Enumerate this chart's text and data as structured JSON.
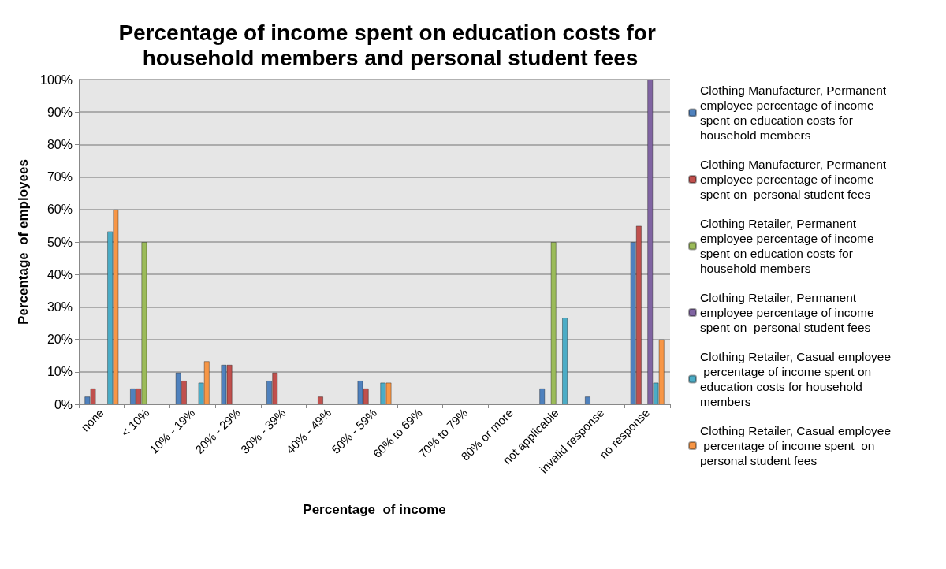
{
  "chart_data": {
    "type": "bar",
    "title": "Percentage of income spent on education costs for household members and personal student fees",
    "xlabel": "Percentage  of income",
    "ylabel": "Percentage  of employees",
    "categories": [
      "none",
      "< 10%",
      "10% - 19%",
      "20% - 29%",
      "30% - 39%",
      "40% - 49%",
      "50% - 59%",
      "60% to 69%",
      "70% to 79%",
      "80% or more",
      "not applicable",
      "invalid response",
      "no response"
    ],
    "series": [
      {
        "name": "Clothing Manufacturer, Permanent employee percentage of income spent on education costs for household members",
        "color": "#4f81bd",
        "values": [
          2.4,
          4.9,
          9.8,
          12.2,
          7.3,
          null,
          7.3,
          null,
          null,
          null,
          4.9,
          2.4,
          50
        ]
      },
      {
        "name": "Clothing Manufacturer, Permanent employee percentage of income spent on  personal student fees",
        "color": "#c0504d",
        "values": [
          4.9,
          4.9,
          7.3,
          12.2,
          9.8,
          2.4,
          4.9,
          null,
          null,
          null,
          null,
          null,
          55
        ]
      },
      {
        "name": "Clothing Retailer, Permanent employee percentage of income spent on education costs for household members",
        "color": "#9bbb59",
        "values": [
          null,
          50,
          null,
          null,
          null,
          null,
          null,
          null,
          null,
          null,
          50,
          null,
          null
        ]
      },
      {
        "name": "Clothing Retailer, Permanent employee percentage of income spent on  personal student fees",
        "color": "#8064a2",
        "values": [
          null,
          null,
          null,
          null,
          null,
          null,
          null,
          null,
          null,
          null,
          null,
          null,
          100
        ]
      },
      {
        "name": "Clothing Retailer, Casual employee percentage of income spent on education costs for household members",
        "color": "#4bacc6",
        "values": [
          53.3,
          null,
          6.7,
          null,
          null,
          null,
          6.7,
          null,
          null,
          null,
          26.7,
          null,
          6.7
        ]
      },
      {
        "name": "Clothing Retailer, Casual employee percentage of income spent  on personal student fees",
        "color": "#f79646",
        "values": [
          60,
          null,
          13.3,
          null,
          null,
          null,
          6.7,
          null,
          null,
          null,
          null,
          null,
          20
        ]
      }
    ],
    "ylim": [
      0,
      100
    ],
    "yticks": [
      {
        "value": 0,
        "label": "0%"
      },
      {
        "value": 10,
        "label": "10%"
      },
      {
        "value": 20,
        "label": "20%"
      },
      {
        "value": 30,
        "label": "30%"
      },
      {
        "value": 40,
        "label": "40%"
      },
      {
        "value": 50,
        "label": "50%"
      },
      {
        "value": 60,
        "label": "60%"
      },
      {
        "value": 70,
        "label": "70%"
      },
      {
        "value": 80,
        "label": "80%"
      },
      {
        "value": 90,
        "label": "90%"
      },
      {
        "value": 100,
        "label": "100%"
      }
    ],
    "grid": "y",
    "legend": "right"
  }
}
